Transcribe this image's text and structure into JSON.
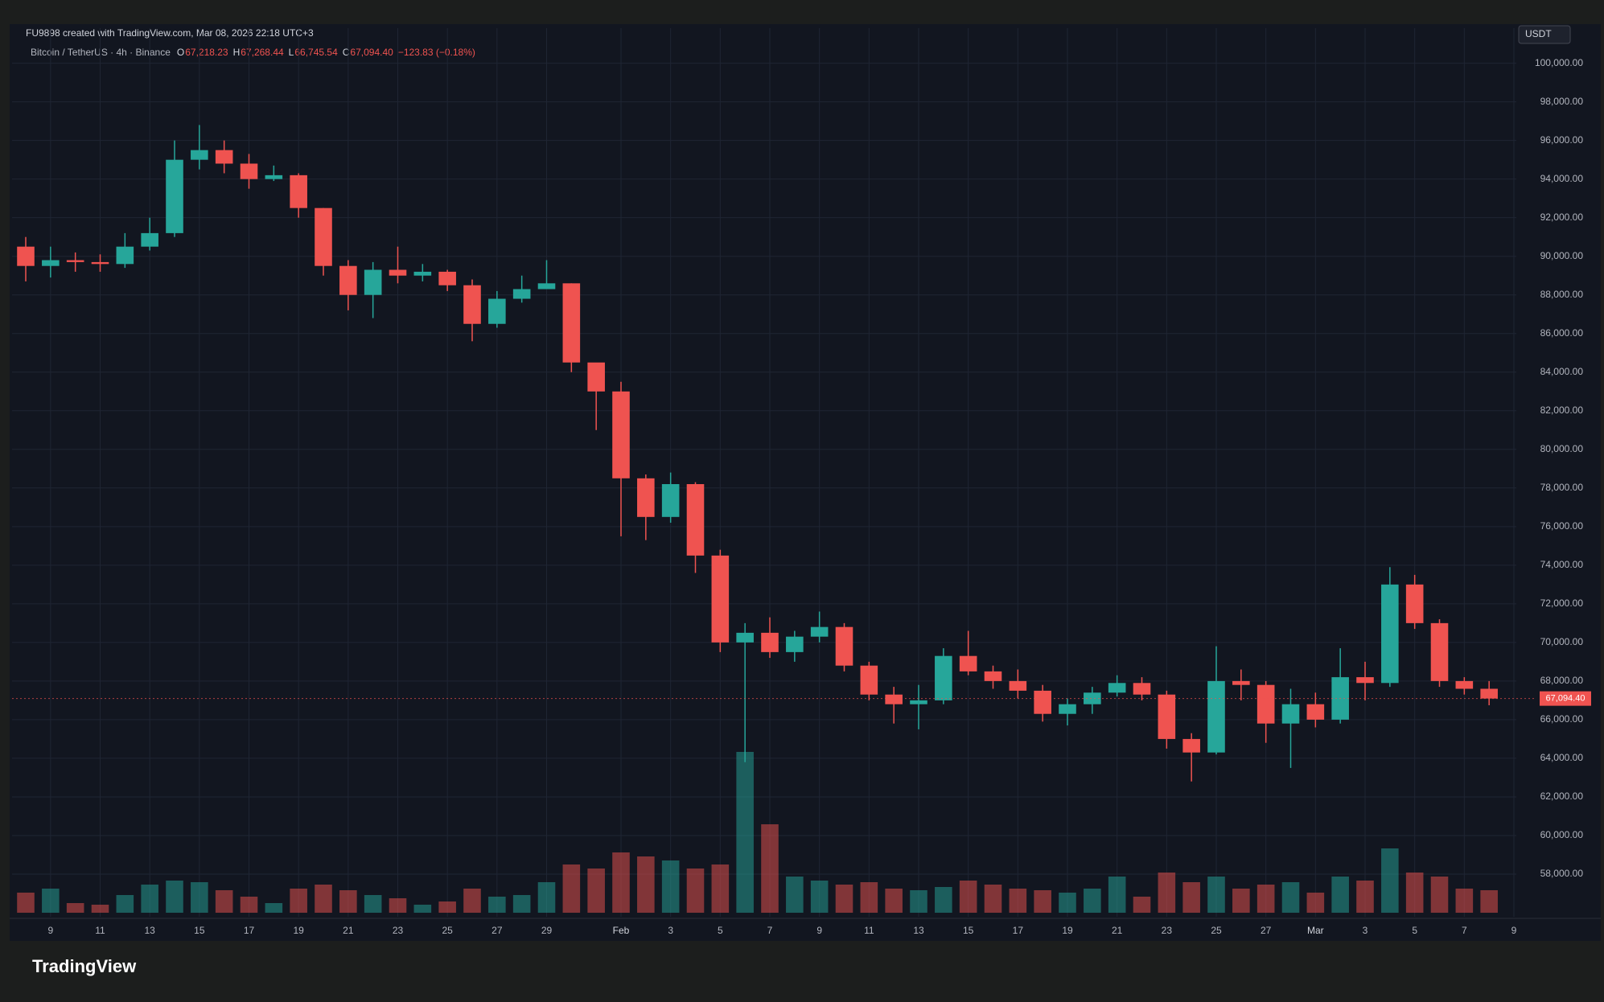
{
  "header": {
    "created": "FU9898 created with TradingView.com, Mar 08, 2026 22:18 UTC+3",
    "symbol": "Bitcoin / TetherUS · 4h · Binance",
    "ohlc": [
      {
        "key": "O",
        "value": "67,218.23"
      },
      {
        "key": "H",
        "value": "67,268.44"
      },
      {
        "key": "L",
        "value": "66,745.54"
      },
      {
        "key": "C",
        "value": "67,094.40"
      }
    ],
    "change": "−123.83 (−0.18%)",
    "currency": "USDT"
  },
  "footer": {
    "brand": "TradingView"
  },
  "chart_data": {
    "type": "candlestick",
    "categories": [
      null,
      "9",
      null,
      "11",
      null,
      "13",
      null,
      "15",
      null,
      "17",
      null,
      "19",
      null,
      "21",
      null,
      "23",
      null,
      "25",
      null,
      "27",
      null,
      "29",
      null,
      null,
      "Feb",
      null,
      "3",
      null,
      "5",
      null,
      "7",
      null,
      "9",
      null,
      "11",
      null,
      "13",
      null,
      "15",
      null,
      "17",
      null,
      "19",
      null,
      "21",
      null,
      "23",
      null,
      "25",
      null,
      "27",
      null,
      "Mar",
      null,
      "3",
      null,
      "5",
      null,
      "7",
      null,
      "9"
    ],
    "open": [
      90500,
      89500,
      89800,
      89700,
      89600,
      90500,
      91200,
      95000,
      95500,
      94800,
      94000,
      94200,
      92500,
      89500,
      88000,
      89300,
      89000,
      89200,
      88500,
      86500,
      87800,
      88300,
      88600,
      84500,
      83000,
      78500,
      76500,
      78200,
      74500,
      70000,
      70500,
      69500,
      70300,
      70800,
      68800,
      67300,
      66800,
      67000,
      69300,
      68500,
      68000,
      67500,
      66300,
      66800,
      67400,
      67900,
      67300,
      65000,
      64300,
      68000,
      67800,
      65800,
      66800,
      66000,
      68200,
      67900,
      73000,
      71000,
      68000,
      67600,
      null
    ],
    "high": [
      91000,
      90500,
      90200,
      90100,
      91200,
      92000,
      96000,
      96800,
      96000,
      95300,
      94700,
      94300,
      92500,
      89800,
      89700,
      90500,
      89600,
      89300,
      88800,
      88200,
      89000,
      89800,
      88600,
      84100,
      83500,
      78700,
      78800,
      78300,
      74800,
      71000,
      71300,
      70600,
      71600,
      71000,
      69000,
      67700,
      67800,
      69700,
      70600,
      68800,
      68600,
      67800,
      67100,
      67700,
      68300,
      68200,
      67500,
      65300,
      69800,
      68600,
      68000,
      67600,
      67400,
      69700,
      69000,
      73900,
      73500,
      71200,
      68200,
      68000,
      null
    ],
    "low": [
      88700,
      88900,
      89200,
      89200,
      89400,
      90300,
      91000,
      94500,
      94300,
      93500,
      93900,
      92000,
      89000,
      87200,
      86800,
      88600,
      88700,
      88200,
      85600,
      86300,
      87600,
      88300,
      84000,
      81000,
      75500,
      75300,
      76200,
      73600,
      69500,
      63800,
      69200,
      69000,
      70000,
      68500,
      67000,
      65800,
      65500,
      66800,
      68300,
      67600,
      67100,
      65900,
      65700,
      66300,
      67200,
      67000,
      64500,
      62800,
      64200,
      67000,
      64800,
      63500,
      65600,
      65800,
      67000,
      67700,
      70700,
      67700,
      67300,
      66745.54,
      null
    ],
    "close": [
      89500,
      89800,
      89700,
      89600,
      90500,
      91200,
      95000,
      95500,
      94800,
      94000,
      94200,
      92500,
      89500,
      88000,
      89300,
      89000,
      89200,
      88500,
      86500,
      87800,
      88300,
      88600,
      84500,
      83000,
      78500,
      76500,
      78200,
      74500,
      70000,
      70500,
      69500,
      70300,
      70800,
      68800,
      67300,
      66800,
      67000,
      69300,
      68500,
      68000,
      67500,
      66300,
      66800,
      67400,
      67900,
      67300,
      65000,
      64300,
      68000,
      67800,
      65800,
      66800,
      66000,
      68200,
      67900,
      73000,
      71000,
      68000,
      67600,
      67094.4,
      null
    ],
    "volume": [
      25,
      30,
      12,
      10,
      22,
      35,
      40,
      38,
      28,
      20,
      12,
      30,
      35,
      28,
      22,
      18,
      10,
      14,
      30,
      20,
      22,
      38,
      60,
      55,
      75,
      70,
      65,
      55,
      60,
      200,
      110,
      45,
      40,
      35,
      38,
      30,
      28,
      32,
      40,
      35,
      30,
      28,
      25,
      30,
      45,
      20,
      50,
      38,
      45,
      30,
      35,
      38,
      25,
      45,
      40,
      80,
      50,
      45,
      30,
      28,
      null
    ],
    "up_color": "#26a69a",
    "down_color": "#ef5350",
    "ylim": [
      56000,
      101400
    ],
    "yticks": [
      {
        "value": 58000,
        "label": "58,000.00"
      },
      {
        "value": 60000,
        "label": "60,000.00"
      },
      {
        "value": 62000,
        "label": "62,000.00"
      },
      {
        "value": 64000,
        "label": "64,000.00"
      },
      {
        "value": 66000,
        "label": "66,000.00"
      },
      {
        "value": 68000,
        "label": "68,000.00"
      },
      {
        "value": 70000,
        "label": "70,000.00"
      },
      {
        "value": 72000,
        "label": "72,000.00"
      },
      {
        "value": 74000,
        "label": "74,000.00"
      },
      {
        "value": 76000,
        "label": "76,000.00"
      },
      {
        "value": 78000,
        "label": "78,000.00"
      },
      {
        "value": 80000,
        "label": "80,000.00"
      },
      {
        "value": 82000,
        "label": "82,000.00"
      },
      {
        "value": 84000,
        "label": "84,000.00"
      },
      {
        "value": 86000,
        "label": "86,000.00"
      },
      {
        "value": 88000,
        "label": "88,000.00"
      },
      {
        "value": 90000,
        "label": "90,000.00"
      },
      {
        "value": 92000,
        "label": "92,000.00"
      },
      {
        "value": 94000,
        "label": "94,000.00"
      },
      {
        "value": 96000,
        "label": "96,000.00"
      },
      {
        "value": 98000,
        "label": "98,000.00"
      },
      {
        "value": 100000,
        "label": "100,000.00"
      }
    ],
    "last_price": {
      "value": 67094.4,
      "label": "67,094.40"
    },
    "grid": true
  }
}
